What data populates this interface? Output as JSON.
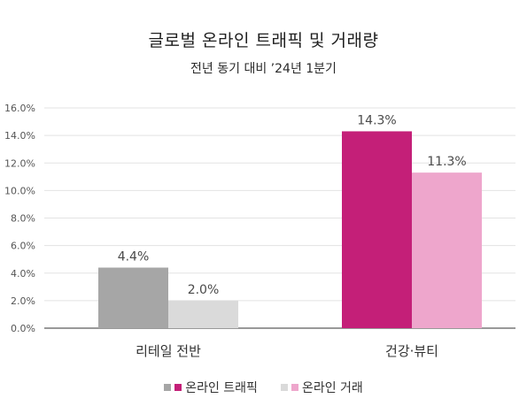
{
  "title": "글로벌 온라인 트래픽 및 거래량",
  "subtitle": "전년 동기 대비 ’24년 1분기",
  "colors": {
    "traffic_primary": "#c41f78",
    "traffic_retail": "#a6a6a6",
    "transactions_primary": "#eea6cc",
    "transactions_retail": "#dadada",
    "gridline": "#e3e3e3",
    "axis": "#333333"
  },
  "legend": [
    {
      "label": "온라인 트래픽",
      "swatches": [
        "#a6a6a6",
        "#c41f78"
      ]
    },
    {
      "label": "온라인 거래",
      "swatches": [
        "#dadada",
        "#eea6cc"
      ]
    }
  ],
  "chart_data": {
    "type": "bar",
    "title": "글로벌 온라인 트래픽 및 거래량",
    "subtitle": "전년 동기 대비 ’24년 1분기",
    "categories": [
      "리테일 전반",
      "건강·뷰티"
    ],
    "series": [
      {
        "name": "온라인 트래픽",
        "values": [
          4.4,
          14.3
        ],
        "labels": [
          "4.4%",
          "14.3%"
        ]
      },
      {
        "name": "온라인 거래",
        "values": [
          2.0,
          11.3
        ],
        "labels": [
          "2.0%",
          "11.3%"
        ]
      }
    ],
    "ylim": [
      0,
      16
    ],
    "yticks": [
      "0.0%",
      "2.0%",
      "4.0%",
      "6.0%",
      "8.0%",
      "10.0%",
      "12.0%",
      "14.0%",
      "16.0%"
    ],
    "ytick_values": [
      0,
      2,
      4,
      6,
      8,
      10,
      12,
      14,
      16
    ],
    "grid": true,
    "legend_position": "bottom"
  }
}
